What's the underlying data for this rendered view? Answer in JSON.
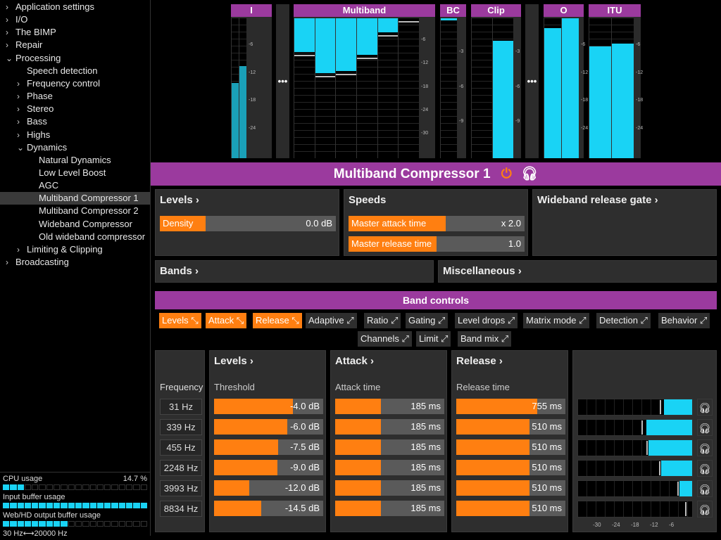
{
  "sidebar": {
    "items": [
      {
        "label": "Application settings",
        "level": 0,
        "arrow": "›"
      },
      {
        "label": "I/O",
        "level": 0,
        "arrow": "›"
      },
      {
        "label": "The BIMP",
        "level": 0,
        "arrow": "›"
      },
      {
        "label": "Repair",
        "level": 0,
        "arrow": "›"
      },
      {
        "label": "Processing",
        "level": 0,
        "arrow": "⌄"
      },
      {
        "label": "Speech detection",
        "level": 1,
        "arrow": ""
      },
      {
        "label": "Frequency control",
        "level": 1,
        "arrow": "›"
      },
      {
        "label": "Phase",
        "level": 1,
        "arrow": "›"
      },
      {
        "label": "Stereo",
        "level": 1,
        "arrow": "›"
      },
      {
        "label": "Bass",
        "level": 1,
        "arrow": "›"
      },
      {
        "label": "Highs",
        "level": 1,
        "arrow": "›"
      },
      {
        "label": "Dynamics",
        "level": 1,
        "arrow": "⌄"
      },
      {
        "label": "Natural Dynamics",
        "level": 2,
        "arrow": ""
      },
      {
        "label": "Low Level Boost",
        "level": 2,
        "arrow": ""
      },
      {
        "label": "AGC",
        "level": 2,
        "arrow": ""
      },
      {
        "label": "Multiband Compressor 1",
        "level": 2,
        "arrow": "",
        "selected": true
      },
      {
        "label": "Multiband Compressor 2",
        "level": 2,
        "arrow": ""
      },
      {
        "label": "Wideband Compressor",
        "level": 2,
        "arrow": ""
      },
      {
        "label": "Old wideband compressor",
        "level": 2,
        "arrow": ""
      },
      {
        "label": "Limiting & Clipping",
        "level": 1,
        "arrow": "›"
      },
      {
        "label": "Broadcasting",
        "level": 0,
        "arrow": "›"
      }
    ]
  },
  "usage": {
    "cpu_label": "CPU usage",
    "cpu_value": "14.7 %",
    "cpu_fraction": 0.147,
    "input_label": "Input buffer usage",
    "input_fraction": 1.0,
    "output_label": "Web/HD output buffer usage",
    "output_fraction": 0.42,
    "range_label": "30 Hz⟷20000 Hz"
  },
  "meters": {
    "I": {
      "label": "I",
      "fills": [
        0.54,
        0.66
      ],
      "mode": "up",
      "scale": [
        "-6",
        "-12",
        "-18",
        "-24"
      ]
    },
    "multiband": {
      "label": "Multiband",
      "fills": [
        0.24,
        0.39,
        0.375,
        0.26,
        0.1,
        0.0
      ],
      "mode": "down",
      "scale": [
        "-6",
        "-12",
        "-18",
        "-24",
        "-30"
      ]
    },
    "BC": {
      "label": "BC",
      "fills": [
        0.015
      ],
      "mode": "down",
      "scale": [
        "-3",
        "-6",
        "-9"
      ]
    },
    "clip": {
      "label": "Clip",
      "fills": [
        0.0,
        0.84
      ],
      "mode": "up",
      "scale": [
        "-3",
        "-6",
        "-9"
      ]
    },
    "O": {
      "label": "O",
      "fills": [
        0.93,
        1.0
      ],
      "mode": "up",
      "scale": [
        "-6",
        "-12",
        "-18",
        "-24"
      ]
    },
    "ITU": {
      "label": "ITU",
      "fills": [
        0.8,
        0.82
      ],
      "mode": "up",
      "scale": [
        "-6",
        "-12",
        "-18",
        "-24"
      ]
    },
    "more_label": "•••"
  },
  "title": "Multiband Compressor 1",
  "panels": {
    "levels": {
      "title": "Levels ›",
      "density_label": "Density",
      "density_value": "0.0 dB",
      "density_fraction": 0.26
    },
    "speeds": {
      "title": "Speeds",
      "attack_label": "Master attack time",
      "attack_value": "x 2.0",
      "attack_fraction": 0.55,
      "release_label": "Master release time",
      "release_value": "1.0",
      "release_fraction": 0.5
    },
    "wideband": {
      "title": "Wideband release gate ›"
    },
    "bands": {
      "title": "Bands ›"
    },
    "misc": {
      "title": "Miscellaneous ›"
    }
  },
  "band_controls": {
    "title": "Band controls",
    "buttons": [
      {
        "label": "Levels ⤡",
        "on": true
      },
      {
        "label": "Attack ⤡",
        "on": true
      },
      {
        "label": "Release ⤡",
        "on": true
      },
      {
        "label": "Adaptive ⤢",
        "on": false
      },
      {
        "label": "Ratio ⤢",
        "on": false
      },
      {
        "label": "Gating ⤢",
        "on": false
      },
      {
        "label": "Level drops ⤢",
        "on": false
      },
      {
        "label": "Matrix mode ⤢",
        "on": false
      },
      {
        "label": "Detection ⤢",
        "on": false
      },
      {
        "label": "Behavior ⤢",
        "on": false
      },
      {
        "label": "Channels ⤢",
        "on": false
      },
      {
        "label": "Limit ⤢",
        "on": false
      },
      {
        "label": "Band mix ⤢",
        "on": false
      }
    ]
  },
  "bands": {
    "frequency_label": "Frequency",
    "levels_title": "Levels ›",
    "threshold_label": "Threshold",
    "attack_title": "Attack ›",
    "attack_label": "Attack time",
    "release_title": "Release ›",
    "release_label": "Release time",
    "rows": [
      {
        "freq": "31 Hz",
        "threshold": "-4.0 dB",
        "thr_f": 0.72,
        "attack": "185 ms",
        "att_f": 0.42,
        "release": "755 ms",
        "rel_f": 0.74,
        "meter_f": 0.25,
        "peak_f": 0.27
      },
      {
        "freq": "339 Hz",
        "threshold": "-6.0 dB",
        "thr_f": 0.67,
        "attack": "185 ms",
        "att_f": 0.42,
        "release": "510 ms",
        "rel_f": 0.67,
        "meter_f": 0.4,
        "peak_f": 0.43
      },
      {
        "freq": "455 Hz",
        "threshold": "-7.5 dB",
        "thr_f": 0.59,
        "attack": "185 ms",
        "att_f": 0.42,
        "release": "510 ms",
        "rel_f": 0.67,
        "meter_f": 0.38,
        "peak_f": 0.39
      },
      {
        "freq": "2248 Hz",
        "threshold": "-9.0 dB",
        "thr_f": 0.58,
        "attack": "185 ms",
        "att_f": 0.42,
        "release": "510 ms",
        "rel_f": 0.67,
        "meter_f": 0.27,
        "peak_f": 0.28
      },
      {
        "freq": "3993 Hz",
        "threshold": "-12.0 dB",
        "thr_f": 0.32,
        "attack": "185 ms",
        "att_f": 0.42,
        "release": "510 ms",
        "rel_f": 0.67,
        "meter_f": 0.11,
        "peak_f": 0.12
      },
      {
        "freq": "8834 Hz",
        "threshold": "-14.5 dB",
        "thr_f": 0.43,
        "attack": "185 ms",
        "att_f": 0.42,
        "release": "510 ms",
        "rel_f": 0.67,
        "meter_f": 0.0,
        "peak_f": 0.05
      }
    ],
    "meter_scale": [
      "-30",
      "-24",
      "-18",
      "-12",
      "-6"
    ]
  }
}
